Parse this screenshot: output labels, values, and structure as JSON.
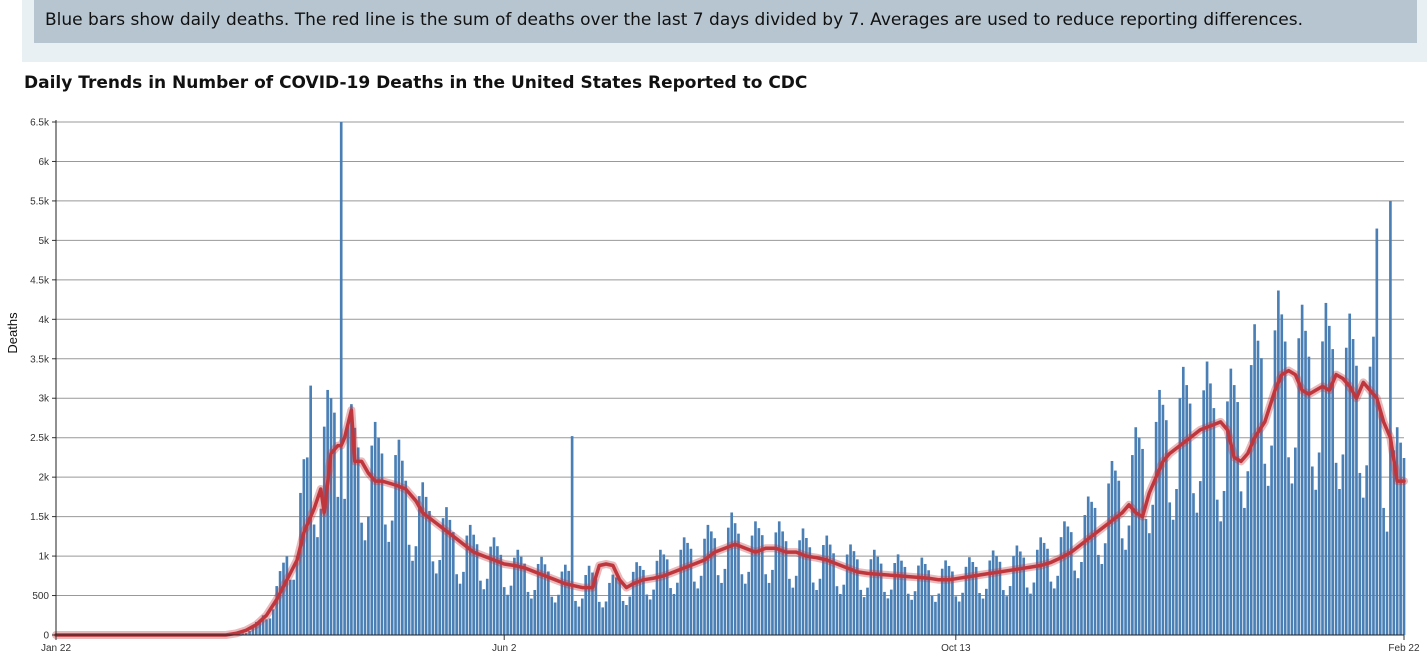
{
  "note": {
    "text": "Blue bars show daily deaths. The red line is the sum of deaths over the last 7 days divided by 7. Averages are used to reduce reporting differences."
  },
  "colors": {
    "bar": "#4a7fb5",
    "line": "#c0363d",
    "grid": "#999999",
    "note_bg": "#b6c5d0",
    "note_outer": "#e9f0f3"
  },
  "chart_data": {
    "type": "bar",
    "title": "Daily Trends in Number of COVID-19 Deaths in the United States Reported to CDC",
    "xlabel": "",
    "ylabel": "Deaths",
    "ylim": [
      0,
      6500
    ],
    "grid": true,
    "yticks": [
      {
        "value": 0,
        "label": "0"
      },
      {
        "value": 500,
        "label": "500"
      },
      {
        "value": 1000,
        "label": "1k"
      },
      {
        "value": 1500,
        "label": "1.5k"
      },
      {
        "value": 2000,
        "label": "2k"
      },
      {
        "value": 2500,
        "label": "2.5k"
      },
      {
        "value": 3000,
        "label": "3k"
      },
      {
        "value": 3500,
        "label": "3.5k"
      },
      {
        "value": 4000,
        "label": "4k"
      },
      {
        "value": 4500,
        "label": "4.5k"
      },
      {
        "value": 5000,
        "label": "5k"
      },
      {
        "value": 5500,
        "label": "5.5k"
      },
      {
        "value": 6000,
        "label": "6k"
      },
      {
        "value": 6500,
        "label": "6.5k"
      }
    ],
    "xticks": [
      {
        "index": 0,
        "label": "Jan 22"
      },
      {
        "index": 132,
        "label": "Jun 2"
      },
      {
        "index": 265,
        "label": "Oct 13"
      },
      {
        "index": 397,
        "label": "Feb 22"
      }
    ],
    "x_start": "Jan 22",
    "x_end": "Feb 22",
    "series": [
      {
        "type": "bar",
        "keyframes": [
          [
            0,
            0
          ],
          [
            52,
            0
          ],
          [
            56,
            40
          ],
          [
            60,
            150
          ],
          [
            63,
            350
          ],
          [
            66,
            600
          ],
          [
            69,
            1000
          ],
          [
            72,
            1500
          ],
          [
            74,
            1800
          ],
          [
            76,
            2000
          ],
          [
            79,
            2200
          ],
          [
            81,
            2400
          ],
          [
            83,
            2500
          ],
          [
            85,
            2300
          ],
          [
            88,
            2100
          ],
          [
            91,
            2000
          ],
          [
            94,
            2000
          ],
          [
            97,
            2000
          ],
          [
            100,
            1900
          ],
          [
            103,
            1700
          ],
          [
            106,
            1500
          ],
          [
            109,
            1400
          ],
          [
            112,
            1300
          ],
          [
            115,
            1200
          ],
          [
            118,
            1100
          ],
          [
            121,
            1050
          ],
          [
            124,
            1000
          ],
          [
            127,
            950
          ],
          [
            130,
            900
          ],
          [
            133,
            850
          ],
          [
            136,
            800
          ],
          [
            139,
            780
          ],
          [
            142,
            750
          ],
          [
            145,
            700
          ],
          [
            148,
            680
          ],
          [
            151,
            650
          ],
          [
            154,
            600
          ],
          [
            157,
            650
          ],
          [
            160,
            600
          ],
          [
            163,
            550
          ],
          [
            166,
            600
          ],
          [
            169,
            650
          ],
          [
            172,
            700
          ],
          [
            175,
            750
          ],
          [
            178,
            800
          ],
          [
            181,
            850
          ],
          [
            184,
            900
          ],
          [
            187,
            950
          ],
          [
            190,
            1000
          ],
          [
            193,
            1050
          ],
          [
            196,
            1100
          ],
          [
            199,
            1150
          ],
          [
            202,
            1100
          ],
          [
            205,
            1050
          ],
          [
            208,
            1100
          ],
          [
            211,
            1100
          ],
          [
            214,
            1050
          ],
          [
            217,
            1000
          ],
          [
            220,
            1000
          ],
          [
            223,
            950
          ],
          [
            226,
            950
          ],
          [
            229,
            900
          ],
          [
            232,
            850
          ],
          [
            235,
            850
          ],
          [
            238,
            800
          ],
          [
            241,
            800
          ],
          [
            244,
            780
          ],
          [
            247,
            760
          ],
          [
            250,
            750
          ],
          [
            253,
            740
          ],
          [
            256,
            720
          ],
          [
            259,
            700
          ],
          [
            262,
            700
          ],
          [
            265,
            700
          ],
          [
            268,
            720
          ],
          [
            271,
            750
          ],
          [
            274,
            780
          ],
          [
            277,
            800
          ],
          [
            280,
            820
          ],
          [
            283,
            840
          ],
          [
            286,
            860
          ],
          [
            289,
            900
          ],
          [
            292,
            950
          ],
          [
            295,
            1000
          ],
          [
            298,
            1100
          ],
          [
            301,
            1200
          ],
          [
            304,
            1300
          ],
          [
            307,
            1450
          ],
          [
            310,
            1600
          ],
          [
            313,
            1700
          ],
          [
            316,
            1850
          ],
          [
            319,
            2000
          ],
          [
            322,
            2150
          ],
          [
            325,
            2300
          ],
          [
            328,
            2400
          ],
          [
            331,
            2500
          ],
          [
            334,
            2550
          ],
          [
            337,
            2600
          ],
          [
            340,
            2550
          ],
          [
            343,
            2400
          ],
          [
            346,
            2500
          ],
          [
            349,
            2600
          ],
          [
            352,
            2850
          ],
          [
            355,
            3050
          ],
          [
            358,
            3200
          ],
          [
            361,
            3250
          ],
          [
            364,
            3200
          ],
          [
            367,
            3100
          ],
          [
            370,
            3050
          ],
          [
            373,
            3100
          ],
          [
            376,
            3150
          ],
          [
            379,
            3050
          ],
          [
            382,
            3000
          ],
          [
            385,
            2900
          ],
          [
            388,
            2800
          ],
          [
            391,
            2300
          ],
          [
            394,
            1950
          ],
          [
            397,
            1950
          ]
        ],
        "spikes": [
          [
            75,
            3160
          ],
          [
            84,
            6500
          ],
          [
            152,
            2520
          ],
          [
            389,
            5150
          ],
          [
            393,
            5500
          ]
        ]
      },
      {
        "type": "line",
        "name": "",
        "points": [
          [
            0,
            0
          ],
          [
            50,
            0
          ],
          [
            53,
            20
          ],
          [
            56,
            60
          ],
          [
            59,
            130
          ],
          [
            62,
            250
          ],
          [
            65,
            450
          ],
          [
            68,
            700
          ],
          [
            71,
            950
          ],
          [
            73,
            1300
          ],
          [
            76,
            1600
          ],
          [
            78,
            1850
          ],
          [
            79,
            1550
          ],
          [
            81,
            2300
          ],
          [
            83,
            2400
          ],
          [
            84,
            2400
          ],
          [
            85,
            2500
          ],
          [
            87,
            2850
          ],
          [
            88,
            2200
          ],
          [
            90,
            2200
          ],
          [
            92,
            2050
          ],
          [
            94,
            1950
          ],
          [
            96,
            1950
          ],
          [
            100,
            1900
          ],
          [
            103,
            1850
          ],
          [
            106,
            1700
          ],
          [
            108,
            1550
          ],
          [
            111,
            1450
          ],
          [
            114,
            1350
          ],
          [
            117,
            1250
          ],
          [
            120,
            1150
          ],
          [
            123,
            1050
          ],
          [
            126,
            1000
          ],
          [
            129,
            950
          ],
          [
            132,
            900
          ],
          [
            135,
            880
          ],
          [
            138,
            850
          ],
          [
            141,
            800
          ],
          [
            144,
            750
          ],
          [
            147,
            700
          ],
          [
            150,
            650
          ],
          [
            153,
            620
          ],
          [
            155,
            600
          ],
          [
            158,
            600
          ],
          [
            160,
            880
          ],
          [
            162,
            900
          ],
          [
            164,
            880
          ],
          [
            166,
            700
          ],
          [
            168,
            600
          ],
          [
            170,
            650
          ],
          [
            173,
            700
          ],
          [
            176,
            720
          ],
          [
            179,
            750
          ],
          [
            182,
            800
          ],
          [
            185,
            850
          ],
          [
            188,
            900
          ],
          [
            191,
            950
          ],
          [
            194,
            1050
          ],
          [
            197,
            1100
          ],
          [
            200,
            1150
          ],
          [
            203,
            1100
          ],
          [
            206,
            1050
          ],
          [
            209,
            1100
          ],
          [
            212,
            1100
          ],
          [
            215,
            1050
          ],
          [
            218,
            1050
          ],
          [
            221,
            1000
          ],
          [
            224,
            980
          ],
          [
            227,
            950
          ],
          [
            230,
            900
          ],
          [
            233,
            850
          ],
          [
            236,
            800
          ],
          [
            239,
            780
          ],
          [
            242,
            770
          ],
          [
            245,
            760
          ],
          [
            248,
            750
          ],
          [
            251,
            740
          ],
          [
            254,
            730
          ],
          [
            257,
            720
          ],
          [
            260,
            700
          ],
          [
            263,
            700
          ],
          [
            266,
            720
          ],
          [
            269,
            740
          ],
          [
            272,
            760
          ],
          [
            275,
            780
          ],
          [
            278,
            800
          ],
          [
            281,
            820
          ],
          [
            284,
            840
          ],
          [
            287,
            860
          ],
          [
            290,
            880
          ],
          [
            293,
            920
          ],
          [
            296,
            980
          ],
          [
            299,
            1050
          ],
          [
            302,
            1150
          ],
          [
            305,
            1250
          ],
          [
            308,
            1350
          ],
          [
            311,
            1450
          ],
          [
            314,
            1550
          ],
          [
            316,
            1650
          ],
          [
            318,
            1550
          ],
          [
            320,
            1500
          ],
          [
            322,
            1800
          ],
          [
            324,
            2000
          ],
          [
            326,
            2200
          ],
          [
            328,
            2300
          ],
          [
            331,
            2400
          ],
          [
            334,
            2500
          ],
          [
            337,
            2600
          ],
          [
            340,
            2650
          ],
          [
            343,
            2700
          ],
          [
            345,
            2600
          ],
          [
            347,
            2250
          ],
          [
            349,
            2200
          ],
          [
            351,
            2300
          ],
          [
            353,
            2500
          ],
          [
            356,
            2700
          ],
          [
            359,
            3100
          ],
          [
            361,
            3300
          ],
          [
            363,
            3350
          ],
          [
            365,
            3300
          ],
          [
            367,
            3100
          ],
          [
            369,
            3050
          ],
          [
            371,
            3100
          ],
          [
            373,
            3150
          ],
          [
            375,
            3100
          ],
          [
            377,
            3300
          ],
          [
            379,
            3250
          ],
          [
            381,
            3150
          ],
          [
            383,
            3000
          ],
          [
            385,
            3200
          ],
          [
            387,
            3100
          ],
          [
            389,
            3000
          ],
          [
            391,
            2700
          ],
          [
            393,
            2500
          ],
          [
            395,
            1950
          ],
          [
            397,
            1950
          ]
        ]
      }
    ]
  }
}
